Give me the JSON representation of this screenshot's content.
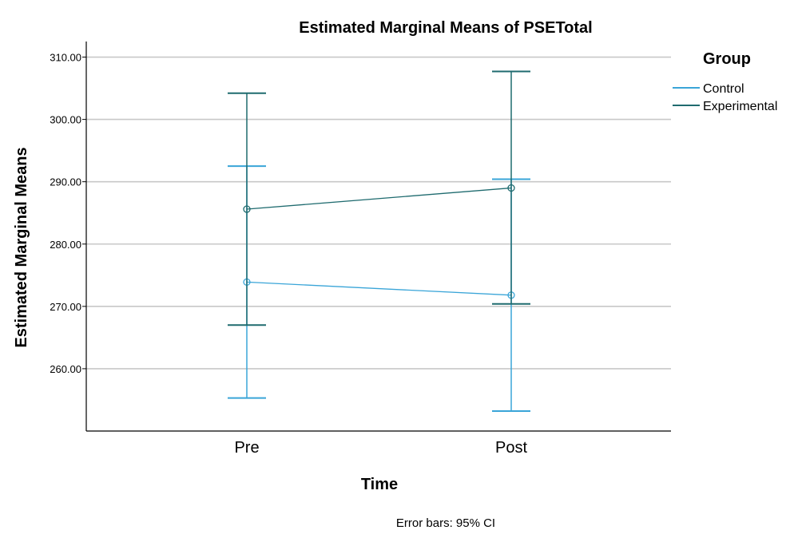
{
  "chart_data": {
    "type": "line",
    "title": "Estimated Marginal Means of PSETotal",
    "xlabel": "Time",
    "ylabel": "Estimated Marginal Means",
    "categories": [
      "Pre",
      "Post"
    ],
    "ylim": [
      250.0,
      312.5
    ],
    "yticks": [
      260,
      270,
      280,
      290,
      300,
      310
    ],
    "ytick_labels": [
      "260.00",
      "270.00",
      "280.00",
      "290.00",
      "300.00",
      "310.00"
    ],
    "grid": true,
    "legend": {
      "title": "Group",
      "position": "right"
    },
    "footnote": "Error bars: 95% CI",
    "series": [
      {
        "name": "Control",
        "color": "#3aa5d8",
        "values": [
          273.9,
          271.8
        ],
        "ci_lower": [
          255.3,
          253.2
        ],
        "ci_upper": [
          292.5,
          290.4
        ]
      },
      {
        "name": "Experimental",
        "color": "#1f6b6f",
        "values": [
          285.6,
          289.0
        ],
        "ci_lower": [
          267.0,
          270.4
        ],
        "ci_upper": [
          304.2,
          307.7
        ]
      }
    ]
  }
}
